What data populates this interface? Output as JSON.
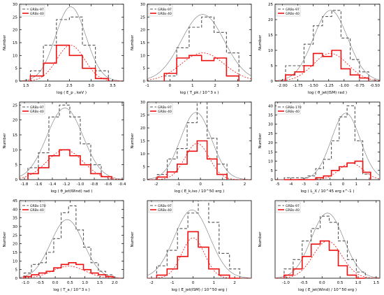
{
  "chart_data": [
    {
      "type": "histogram",
      "xlabel": "log ( E_p , keV )",
      "ylabel": "Number",
      "xlim": [
        1.35,
        3.75
      ],
      "ylim": [
        0,
        30
      ],
      "xticks": [
        "1.5",
        "2.0",
        "2.5",
        "3.0",
        "3.5"
      ],
      "xtick_vals": [
        1.5,
        2.0,
        2.5,
        3.0,
        3.5
      ],
      "yticks": [
        "0",
        "5",
        "10",
        "15",
        "20",
        "25",
        "30"
      ],
      "ytick_vals": [
        0,
        5,
        10,
        15,
        20,
        25,
        30
      ],
      "edges": [
        1.6,
        1.9,
        2.2,
        2.5,
        2.8,
        3.1,
        3.4
      ],
      "series": [
        {
          "name": "GRBs-97",
          "counts": [
            4,
            14,
            24,
            25,
            14,
            4
          ],
          "fit": {
            "mu": 2.53,
            "sigma": 0.35,
            "amp": 29
          }
        },
        {
          "name": "GRBs-40",
          "counts": [
            2,
            7,
            14,
            10,
            5,
            1
          ],
          "fit": {
            "mu": 2.53,
            "sigma": 0.32,
            "amp": 14
          }
        }
      ]
    },
    {
      "type": "histogram",
      "xlabel": "log ( T_pk / 10^3 s )",
      "ylabel": "Number",
      "xlim": [
        -1.0,
        3.6
      ],
      "ylim": [
        0,
        30
      ],
      "xticks": [
        "-1",
        "0",
        "1",
        "2",
        "3"
      ],
      "xtick_vals": [
        -1,
        0,
        1,
        2,
        3
      ],
      "yticks": [
        "0",
        "5",
        "10",
        "15",
        "20",
        "25",
        "30"
      ],
      "ytick_vals": [
        0,
        5,
        10,
        15,
        20,
        25,
        30
      ],
      "edges": [
        -0.25,
        0.3,
        0.85,
        1.4,
        1.95,
        2.5,
        3.05
      ],
      "series": [
        {
          "name": "GRBs-97",
          "counts": [
            2,
            13,
            21,
            25,
            19,
            11
          ],
          "fit": {
            "mu": 1.45,
            "sigma": 0.95,
            "amp": 26
          }
        },
        {
          "name": "GRBs-40",
          "counts": [
            3,
            9,
            10,
            8,
            9,
            2
          ],
          "fit": {
            "mu": 1.45,
            "sigma": 0.95,
            "amp": 11
          }
        }
      ]
    },
    {
      "type": "histogram",
      "xlabel": "log ( θ_jet(ISM) rad )",
      "ylabel": "Number",
      "xlim": [
        -2.12,
        -0.42
      ],
      "ylim": [
        0,
        25
      ],
      "xticks": [
        "-2.00",
        "-1.75",
        "-1.50",
        "-1.25",
        "-1.00",
        "-0.75",
        "-0.50"
      ],
      "xtick_vals": [
        -2.0,
        -1.75,
        -1.5,
        -1.25,
        -1.0,
        -0.75,
        -0.5
      ],
      "yticks": [
        "0",
        "5",
        "10",
        "15",
        "20",
        "25"
      ],
      "ytick_vals": [
        0,
        5,
        10,
        15,
        20,
        25
      ],
      "edges": [
        -1.95,
        -1.8,
        -1.65,
        -1.5,
        -1.35,
        -1.2,
        -1.05,
        -0.9,
        -0.75,
        -0.6
      ],
      "series": [
        {
          "name": "GRBs-97",
          "counts": [
            5,
            5,
            12,
            18,
            21,
            23,
            14,
            7,
            3
          ],
          "fit": {
            "mu": -1.22,
            "sigma": 0.28,
            "amp": 23
          }
        },
        {
          "name": "GRBs-40",
          "counts": [
            2,
            3,
            5,
            9,
            8,
            10,
            4,
            2,
            1
          ],
          "fit": {
            "mu": -1.22,
            "sigma": 0.28,
            "amp": 9
          }
        }
      ]
    },
    {
      "type": "histogram",
      "xlabel": "log ( θ_jet(Wind) rad )",
      "ylabel": "Number",
      "xlim": [
        -1.87,
        -0.38
      ],
      "ylim": [
        0,
        26
      ],
      "xticks": [
        "-1.8",
        "-1.6",
        "-1.4",
        "-1.2",
        "-1.0",
        "-0.8",
        "-0.6",
        "-0.4"
      ],
      "xtick_vals": [
        -1.8,
        -1.6,
        -1.4,
        -1.2,
        -1.0,
        -0.8,
        -0.6,
        -0.4
      ],
      "yticks": [
        "0",
        "5",
        "10",
        "15",
        "20",
        "25"
      ],
      "ytick_vals": [
        0,
        5,
        10,
        15,
        20,
        25
      ],
      "edges": [
        -1.75,
        -1.6,
        -1.45,
        -1.3,
        -1.15,
        -1.0,
        -0.85,
        -0.7,
        -0.55
      ],
      "series": [
        {
          "name": "GRBs-97",
          "counts": [
            4,
            9,
            21,
            25,
            21,
            12,
            5,
            1
          ],
          "fit": {
            "mu": -1.22,
            "sigma": 0.26,
            "amp": 24
          }
        },
        {
          "name": "GRBs-40",
          "counts": [
            2,
            4,
            8,
            10,
            8,
            5,
            2,
            1
          ],
          "fit": {
            "mu": -1.22,
            "sigma": 0.26,
            "amp": 10
          }
        }
      ]
    },
    {
      "type": "histogram",
      "xlabel": "log ( E_k,iso / 10^50 erg )",
      "ylabel": "Number",
      "xlim": [
        -2.4,
        2.3
      ],
      "ylim": [
        0,
        30
      ],
      "xticks": [
        "-2",
        "-1",
        "0",
        "1",
        "2"
      ],
      "xtick_vals": [
        -2,
        -1,
        0,
        1,
        2
      ],
      "yticks": [
        "0",
        "5",
        "10",
        "15",
        "20",
        "25",
        "30"
      ],
      "ytick_vals": [
        0,
        5,
        10,
        15,
        20,
        25,
        30
      ],
      "edges": [
        -1.95,
        -1.5,
        -1.05,
        -0.6,
        -0.15,
        0.3,
        0.75,
        1.2
      ],
      "series": [
        {
          "name": "GRBs-97",
          "counts": [
            2,
            8,
            12,
            22,
            30,
            16,
            6
          ],
          "fit": {
            "mu": -0.2,
            "sigma": 0.7,
            "amp": 26
          }
        },
        {
          "name": "GRBs-40",
          "counts": [
            1,
            3,
            6,
            11,
            15,
            8,
            2
          ],
          "fit": {
            "mu": -0.15,
            "sigma": 0.55,
            "amp": 14
          }
        }
      ]
    },
    {
      "type": "histogram",
      "xlabel": "log ( L_X / 10^45 erg s^-1 )",
      "ylabel": "Number",
      "xlim": [
        -5.2,
        2.8
      ],
      "ylim": [
        0,
        42
      ],
      "xticks": [
        "-5",
        "-4",
        "-3",
        "-2",
        "-1",
        "0",
        "1",
        "2"
      ],
      "xtick_vals": [
        -5,
        -4,
        -3,
        -2,
        -1,
        0,
        1,
        2
      ],
      "yticks": [
        "0",
        "5",
        "10",
        "15",
        "20",
        "25",
        "30",
        "35",
        "40"
      ],
      "ytick_vals": [
        0,
        5,
        10,
        15,
        20,
        25,
        30,
        35,
        40
      ],
      "edges": [
        -4.5,
        -3.9,
        -3.3,
        -2.7,
        -2.1,
        -1.5,
        -0.9,
        -0.3,
        0.3,
        0.9,
        1.5,
        2.1
      ],
      "series": [
        {
          "name": "GRBs-170",
          "counts": [
            1,
            1,
            1,
            2,
            6,
            11,
            21,
            34,
            40,
            21,
            3
          ],
          "fit": {
            "mu": 0.2,
            "sigma": 1.1,
            "amp": 36
          }
        },
        {
          "name": "GRBs-40",
          "counts": [
            0,
            0,
            0,
            0,
            1,
            2,
            5,
            7,
            9,
            10,
            4
          ],
          "fit": {
            "mu": 0.6,
            "sigma": 0.9,
            "amp": 9
          }
        }
      ]
    },
    {
      "type": "histogram",
      "xlabel": "log ( T_a / 10^3 s )",
      "ylabel": "Number",
      "xlim": [
        -1.2,
        2.3
      ],
      "ylim": [
        0,
        45
      ],
      "xticks": [
        "-1.0",
        "-0.5",
        "0.0",
        "0.5",
        "1.0",
        "1.5",
        "2.0"
      ],
      "xtick_vals": [
        -1.0,
        -0.5,
        0.0,
        0.5,
        1.0,
        1.5,
        2.0
      ],
      "yticks": [
        "0",
        "5",
        "10",
        "15",
        "20",
        "25",
        "30",
        "35",
        "40",
        "45"
      ],
      "ytick_vals": [
        0,
        5,
        10,
        15,
        20,
        25,
        30,
        35,
        40,
        45
      ],
      "edges": [
        -1.05,
        -0.8,
        -0.55,
        -0.3,
        -0.05,
        0.2,
        0.45,
        0.7,
        0.95,
        1.2,
        1.45,
        1.7,
        1.95
      ],
      "series": [
        {
          "name": "GRBs-170",
          "counts": [
            3,
            8,
            9,
            15,
            23,
            38,
            42,
            28,
            18,
            9,
            4,
            2
          ],
          "fit": {
            "mu": 0.4,
            "sigma": 0.55,
            "amp": 34
          }
        },
        {
          "name": "GRBs-40",
          "counts": [
            1,
            2,
            3,
            4,
            6,
            8,
            9,
            8,
            5,
            3,
            2,
            1
          ],
          "fit": {
            "mu": 0.45,
            "sigma": 0.55,
            "amp": 7
          }
        }
      ]
    },
    {
      "type": "histogram",
      "xlabel": "log ( E_jet(ISM) / 10^50 erg )",
      "ylabel": "Number",
      "xlim": [
        -2.2,
        2.8
      ],
      "ylim": [
        0,
        25
      ],
      "xticks": [
        "-2",
        "-1",
        "0",
        "1",
        "2"
      ],
      "xtick_vals": [
        -2,
        -1,
        0,
        1,
        2
      ],
      "yticks": [],
      "ytick_vals": [],
      "edges": [
        -1.75,
        -1.25,
        -0.75,
        -0.25,
        0.25,
        0.75,
        1.25,
        1.75,
        2.25
      ],
      "series": [
        {
          "name": "GRBs-97",
          "counts": [
            4,
            9,
            16,
            21,
            25,
            18,
            8,
            3
          ],
          "fit": {
            "mu": -0.05,
            "sigma": 0.85,
            "amp": 22
          }
        },
        {
          "name": "GRBs-40",
          "counts": [
            1,
            3,
            7,
            15,
            10,
            3,
            1,
            0
          ],
          "fit": {
            "mu": 0.0,
            "sigma": 0.55,
            "amp": 13
          }
        }
      ]
    },
    {
      "type": "histogram",
      "xlabel": "log ( E_jet(Wind) / 10^50 erg )",
      "ylabel": "Number",
      "xlim": [
        -1.3,
        1.6
      ],
      "ylim": [
        0,
        25
      ],
      "xticks": [
        "-1.0",
        "-0.5",
        "0.0",
        "0.5",
        "1.0",
        "1.5"
      ],
      "xtick_vals": [
        -1.0,
        -0.5,
        0.0,
        0.5,
        1.0,
        1.5
      ],
      "yticks": [],
      "ytick_vals": [],
      "edges": [
        -1.05,
        -0.8,
        -0.55,
        -0.3,
        -0.05,
        0.2,
        0.45,
        0.7,
        0.95,
        1.2
      ],
      "series": [
        {
          "name": "GRBs-97",
          "counts": [
            3,
            6,
            12,
            16,
            20,
            18,
            12,
            6,
            2
          ],
          "fit": {
            "mu": 0.15,
            "sigma": 0.45,
            "amp": 21
          }
        },
        {
          "name": "GRBs-40",
          "counts": [
            1,
            3,
            7,
            11,
            12,
            9,
            4,
            1,
            0
          ],
          "fit": {
            "mu": 0.15,
            "sigma": 0.4,
            "amp": 12
          }
        }
      ]
    }
  ]
}
